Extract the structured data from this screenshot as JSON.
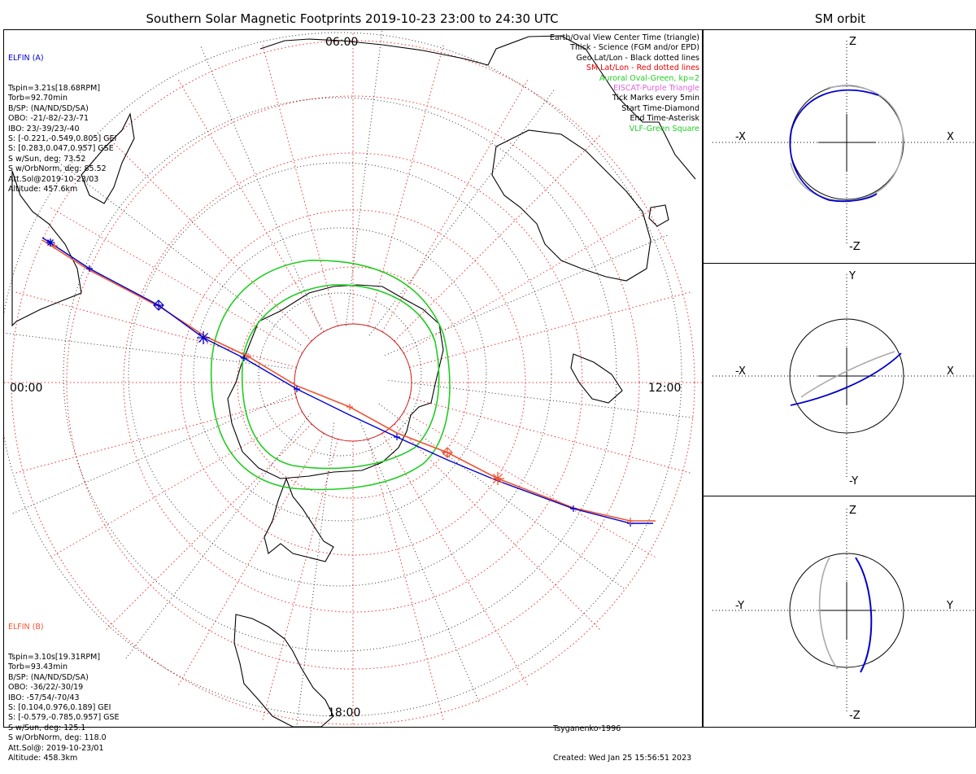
{
  "header": {
    "title": "Southern Solar Magnetic Footprints 2019-10-23 23:00 to 24:30 UTC",
    "sm_title": "SM orbit"
  },
  "colors": {
    "elfin_a": "#0000cc",
    "elfin_b": "#ee5533",
    "oval": "#22cc22",
    "sm_grid": "#ee3333",
    "eiscat": "#dd66dd",
    "orbit_gray": "#aaaaaa"
  },
  "elfin_a": {
    "name": "ELFIN (A)",
    "lines": [
      "Tspin=3.21s[18.68RPM]",
      "Torb=92.70min",
      "B/SP: (NA/ND/SD/SA)",
      "OBO: -21/-82/-23/-71",
      "IBO: 23/-39/23/-40",
      "S: [-0.221,-0.549,0.805] GEI",
      "S: [0.283,0.047,0.957] GSE",
      "S w/Sun, deg: 73.52",
      "S w/OrbNorm, deg: 85.52",
      "Att.Sol@2019-10-23/03",
      "Altitude: 457.6km"
    ]
  },
  "elfin_b": {
    "name": "ELFIN (B)",
    "lines": [
      "Tspin=3.10s[19.31RPM]",
      "Torb=93.43min",
      "B/SP: (NA/ND/SD/SA)",
      "OBO: -36/22/-30/19",
      "IBO: -57/54/-70/43",
      "S: [0.104,0.976,0.189] GEI",
      "S: [-0.579,-0.785,0.957] GSE",
      "S w/Sun, deg: 125.1",
      "S w/OrbNorm, deg: 118.0",
      "Att.Sol@: 2019-10-23/01",
      "Altitude: 458.3km"
    ]
  },
  "legend": [
    {
      "text": "Earth/Oval View Center Time (triangle)",
      "color": "#000000"
    },
    {
      "text": "Thick - Science (FGM and/or EPD)",
      "color": "#000000"
    },
    {
      "text": "Geo Lat/Lon - Black dotted lines",
      "color": "#000000"
    },
    {
      "text": "SM Lat/Lon - Red dotted lines",
      "color": "#ee0000"
    },
    {
      "text": "Auroral Oval-Green, kp=2",
      "color": "#22cc22"
    },
    {
      "text": "EISCAT-Purple Triangle",
      "color": "#dd66dd"
    },
    {
      "text": "Tick Marks every 5min",
      "color": "#000000"
    },
    {
      "text": "Start Time-Diamond",
      "color": "#000000"
    },
    {
      "text": "End Time-Asterisk",
      "color": "#000000"
    },
    {
      "text": "VLF-Green Square",
      "color": "#22cc22"
    }
  ],
  "hours": {
    "top": "06:00",
    "left": "00:00",
    "right": "12:00",
    "bottom": "18:00"
  },
  "credits": {
    "model": "Tsyganenko-1996",
    "created": "Created: Wed Jan 25 15:56:51 2023"
  },
  "sm_panels": [
    {
      "top": "Z",
      "bottom": "-Z",
      "left": "-X",
      "right": "X"
    },
    {
      "top": "Y",
      "bottom": "-Y",
      "left": "-X",
      "right": "X"
    },
    {
      "top": "Z",
      "bottom": "-Z",
      "left": "-Y",
      "right": "Y"
    }
  ]
}
